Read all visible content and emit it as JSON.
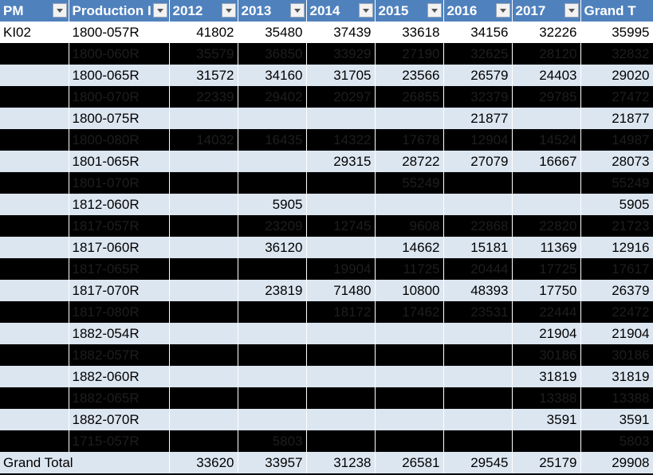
{
  "header": [
    "PM",
    "Production I",
    "2012",
    "2013",
    "2014",
    "2015",
    "2016",
    "2017",
    "Grand T"
  ],
  "rows": [
    {
      "pm": "KI02",
      "prod": "1800-057R",
      "v": [
        "41802",
        "35480",
        "37439",
        "33618",
        "34156",
        "32226",
        "35995"
      ],
      "style": "first"
    },
    {
      "pm": "",
      "prod": "1800-060R",
      "v": [
        "35579",
        "36850",
        "33929",
        "27190",
        "32625",
        "28120",
        "32832"
      ],
      "style": "dark"
    },
    {
      "pm": "",
      "prod": "1800-065R",
      "v": [
        "31572",
        "34160",
        "31705",
        "23566",
        "26579",
        "24403",
        "29020"
      ],
      "style": "light"
    },
    {
      "pm": "",
      "prod": "1800-070R",
      "v": [
        "22339",
        "29402",
        "20297",
        "26855",
        "32379",
        "29785",
        "27472"
      ],
      "style": "dark"
    },
    {
      "pm": "",
      "prod": "1800-075R",
      "v": [
        "",
        "",
        "",
        "",
        "21877",
        "",
        "21877"
      ],
      "style": "light"
    },
    {
      "pm": "",
      "prod": "1800-080R",
      "v": [
        "14032",
        "16435",
        "14322",
        "17678",
        "12904",
        "14524",
        "14987"
      ],
      "style": "dark"
    },
    {
      "pm": "",
      "prod": "1801-065R",
      "v": [
        "",
        "",
        "29315",
        "28722",
        "27079",
        "16667",
        "28073"
      ],
      "style": "light"
    },
    {
      "pm": "",
      "prod": "1801-070R",
      "v": [
        "",
        "",
        "",
        "55249",
        "",
        "",
        "55249"
      ],
      "style": "dark"
    },
    {
      "pm": "",
      "prod": "1812-060R",
      "v": [
        "",
        "5905",
        "",
        "",
        "",
        "",
        "5905"
      ],
      "style": "light"
    },
    {
      "pm": "",
      "prod": "1817-057R",
      "v": [
        "",
        "23209",
        "12745",
        "9608",
        "22868",
        "22820",
        "21723"
      ],
      "style": "dark"
    },
    {
      "pm": "",
      "prod": "1817-060R",
      "v": [
        "",
        "36120",
        "",
        "14662",
        "15181",
        "11369",
        "12916"
      ],
      "style": "light"
    },
    {
      "pm": "",
      "prod": "1817-065R",
      "v": [
        "",
        "",
        "19904",
        "11725",
        "20444",
        "17725",
        "17617"
      ],
      "style": "dark"
    },
    {
      "pm": "",
      "prod": "1817-070R",
      "v": [
        "",
        "23819",
        "71480",
        "10800",
        "48393",
        "17750",
        "26379"
      ],
      "style": "light"
    },
    {
      "pm": "",
      "prod": "1817-080R",
      "v": [
        "",
        "",
        "18172",
        "17462",
        "23531",
        "22444",
        "22472"
      ],
      "style": "dark"
    },
    {
      "pm": "",
      "prod": "1882-054R",
      "v": [
        "",
        "",
        "",
        "",
        "",
        "21904",
        "21904"
      ],
      "style": "light"
    },
    {
      "pm": "",
      "prod": "1882-057R",
      "v": [
        "",
        "",
        "",
        "",
        "",
        "30186",
        "30186"
      ],
      "style": "dark"
    },
    {
      "pm": "",
      "prod": "1882-060R",
      "v": [
        "",
        "",
        "",
        "",
        "",
        "31819",
        "31819"
      ],
      "style": "light"
    },
    {
      "pm": "",
      "prod": "1882-065R",
      "v": [
        "",
        "",
        "",
        "",
        "",
        "13388",
        "13388"
      ],
      "style": "dark"
    },
    {
      "pm": "",
      "prod": "1882-070R",
      "v": [
        "",
        "",
        "",
        "",
        "",
        "3591",
        "3591"
      ],
      "style": "light"
    },
    {
      "pm": "",
      "prod": "1715-057R",
      "v": [
        "",
        "5803",
        "",
        "",
        "",
        "",
        "5803"
      ],
      "style": "dark"
    }
  ],
  "total": {
    "label": "Grand Total",
    "v": [
      "33620",
      "33957",
      "31238",
      "26581",
      "29545",
      "25179",
      "29908"
    ]
  }
}
